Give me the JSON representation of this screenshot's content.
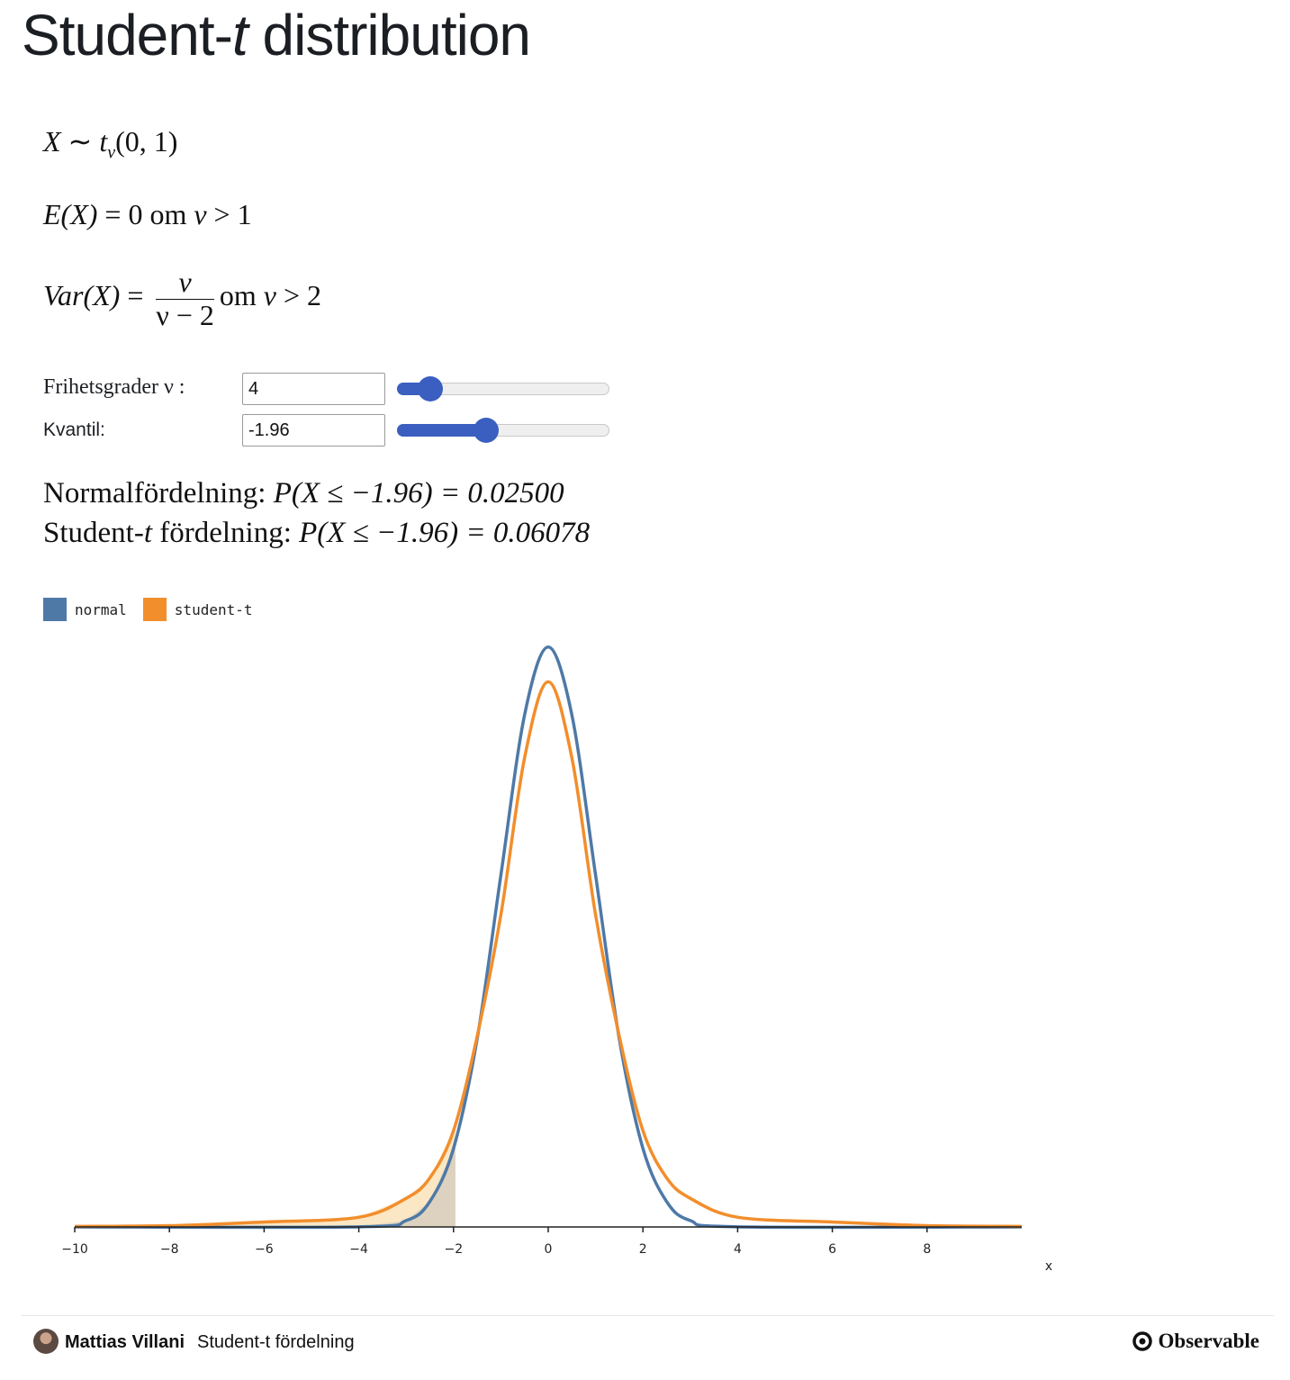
{
  "page": {
    "title_main": "Student-",
    "title_ital": "t",
    "title_rest": " distribution"
  },
  "formulas": {
    "f1_var": "X",
    "f1_sim": " ∼ ",
    "f1_t": "t",
    "f1_nu": "ν",
    "f1_args": "(0, 1)",
    "f2_e": "E",
    "f2_x": "(X)",
    "f2_eq": " = 0 ",
    "f2_om": "om",
    "f2_nu": " ν",
    "f2_cond": " > 1",
    "f3_var": "Var",
    "f3_x": "(X)",
    "f3_eq": " = ",
    "f3_num": "ν",
    "f3_den": "ν − 2",
    "f3_om": "om",
    "f3_nu": " ν",
    "f3_cond": " > 2"
  },
  "controls": {
    "df_label": "Frihetsgrader ν :",
    "df_value": "4",
    "df_slider_fraction": 0.11,
    "quantile_label": "Kvantil:",
    "quantile_value": "-1.96",
    "quantile_slider_fraction": 0.41
  },
  "results": {
    "normal_label": "Normalfördelning: ",
    "normal_expr": "P(X ≤ −1.96) = 0.02500",
    "student_label_a": "Student-",
    "student_label_t": "t",
    "student_label_b": " fördelning: ",
    "student_expr": "P(X ≤ −1.96) = 0.06078"
  },
  "legend": {
    "items": [
      {
        "label": "normal",
        "color": "#4e79a7"
      },
      {
        "label": "student-t",
        "color": "#f28e2c"
      }
    ]
  },
  "chart_data": {
    "type": "line",
    "x_range": [
      -10,
      10
    ],
    "xticks": [
      -10,
      -8,
      -6,
      -4,
      -2,
      0,
      2,
      4,
      6,
      8
    ],
    "xlabel": "x",
    "degrees_of_freedom": 4,
    "quantile": -1.96,
    "series": [
      {
        "name": "normal",
        "color": "#4e79a7",
        "x": [
          -10,
          -4,
          -3,
          -2.5,
          -2,
          -1.5,
          -1,
          -0.5,
          0,
          0.5,
          1,
          1.5,
          2,
          2.5,
          3,
          4,
          10
        ],
        "y": [
          0.0,
          0.0001,
          0.0044,
          0.0175,
          0.054,
          0.1295,
          0.242,
          0.3521,
          0.3989,
          0.3521,
          0.242,
          0.1295,
          0.054,
          0.0175,
          0.0044,
          0.0001,
          0.0
        ]
      },
      {
        "name": "student-t",
        "color": "#f28e2c",
        "x": [
          -10,
          -8,
          -6,
          -4,
          -3,
          -2.5,
          -2,
          -1.5,
          -1,
          -0.5,
          0,
          0.5,
          1,
          1.5,
          2,
          2.5,
          3,
          4,
          6,
          8,
          10
        ],
        "y": [
          0.0004,
          0.0009,
          0.0034,
          0.0067,
          0.0197,
          0.0338,
          0.0663,
          0.1313,
          0.2147,
          0.3226,
          0.375,
          0.3226,
          0.2147,
          0.1313,
          0.0663,
          0.0338,
          0.0197,
          0.0067,
          0.0034,
          0.0009,
          0.0004
        ]
      }
    ],
    "shaded_tail": {
      "from": -10,
      "to": -1.96
    }
  },
  "footer": {
    "author": "Mattias Villani",
    "notebook": "Student-t fördelning",
    "brand": "Observable"
  }
}
